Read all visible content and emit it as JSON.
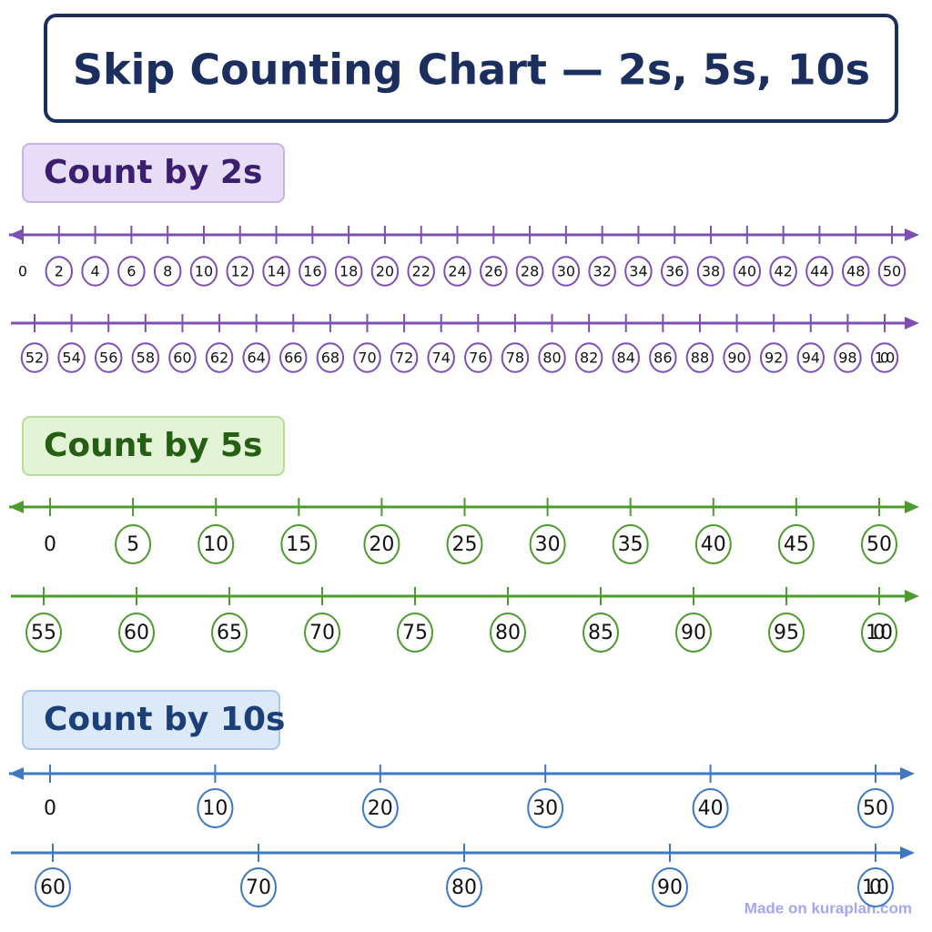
{
  "title": "Skip Counting Chart — 2s, 5s, 10s",
  "sections": [
    {
      "heading": "Count by 2s",
      "rows": [
        [
          0,
          2,
          4,
          6,
          8,
          10,
          12,
          14,
          16,
          18,
          20,
          22,
          24,
          26,
          28,
          30,
          32,
          34,
          36,
          38,
          40,
          42,
          44,
          48,
          50
        ],
        [
          52,
          54,
          56,
          58,
          60,
          62,
          64,
          66,
          68,
          70,
          72,
          74,
          76,
          78,
          80,
          82,
          84,
          86,
          88,
          90,
          92,
          94,
          98,
          100
        ]
      ]
    },
    {
      "heading": "Count by 5s",
      "rows": [
        [
          0,
          5,
          10,
          15,
          20,
          25,
          30,
          35,
          40,
          45,
          50
        ],
        [
          55,
          60,
          65,
          70,
          75,
          80,
          85,
          90,
          95,
          100
        ]
      ]
    },
    {
      "heading": "Count by 10s",
      "rows": [
        [
          0,
          10,
          20,
          30,
          40,
          50
        ],
        [
          60,
          70,
          80,
          90,
          100
        ]
      ]
    }
  ],
  "footer": "Made on kuraplan.com"
}
